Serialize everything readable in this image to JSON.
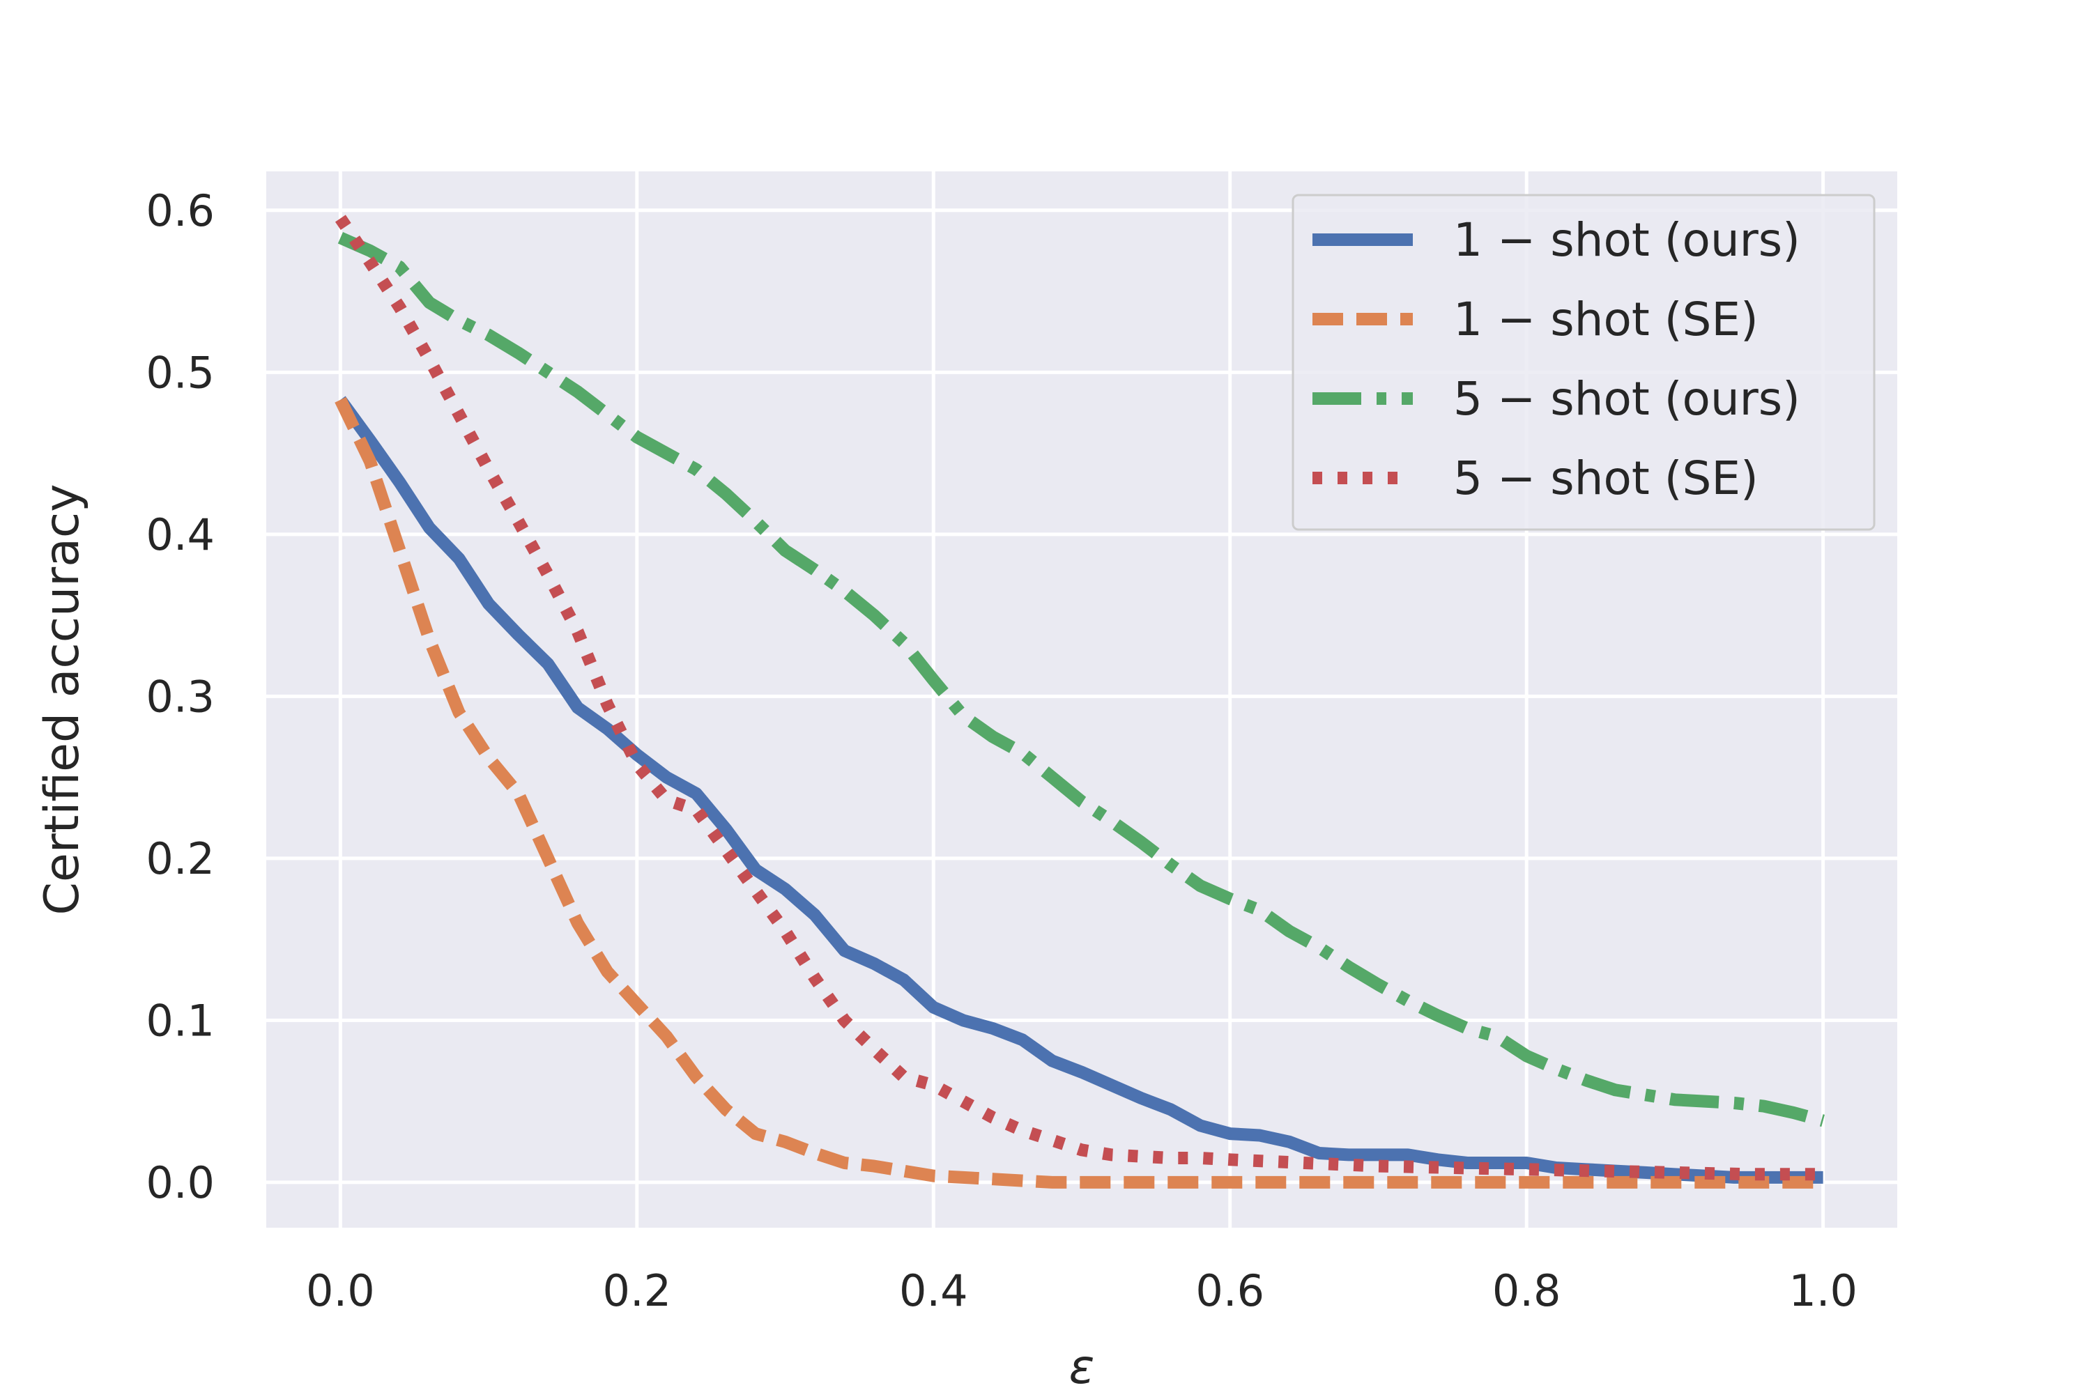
{
  "chart_data": {
    "type": "line",
    "xlabel": "ε",
    "ylabel": "Certified accuracy",
    "xlim": [
      -0.05,
      1.05
    ],
    "ylim": [
      -0.028,
      0.624
    ],
    "xticks": [
      0.0,
      0.2,
      0.4,
      0.6,
      0.8,
      1.0
    ],
    "xtick_labels": [
      "0.0",
      "0.2",
      "0.4",
      "0.6",
      "0.8",
      "1.0"
    ],
    "yticks": [
      0.0,
      0.1,
      0.2,
      0.3,
      0.4,
      0.5,
      0.6
    ],
    "ytick_labels": [
      "0.0",
      "0.1",
      "0.2",
      "0.3",
      "0.4",
      "0.5",
      "0.6"
    ],
    "grid": true,
    "legend_position": "top-right",
    "background_color": "#EAEAF2",
    "series": [
      {
        "name": "1 − shot (ours)",
        "color": "#4C72B0",
        "style": "solid",
        "x": [
          0.0,
          0.02,
          0.04,
          0.06,
          0.08,
          0.1,
          0.12,
          0.14,
          0.16,
          0.18,
          0.2,
          0.22,
          0.24,
          0.26,
          0.28,
          0.3,
          0.32,
          0.34,
          0.36,
          0.38,
          0.4,
          0.42,
          0.44,
          0.46,
          0.48,
          0.5,
          0.52,
          0.54,
          0.56,
          0.58,
          0.6,
          0.62,
          0.64,
          0.66,
          0.68,
          0.7,
          0.72,
          0.74,
          0.76,
          0.78,
          0.8,
          0.82,
          0.84,
          0.86,
          0.88,
          0.9,
          0.92,
          0.94,
          0.96,
          0.98,
          1.0
        ],
        "y": [
          0.483,
          0.458,
          0.432,
          0.404,
          0.385,
          0.357,
          0.338,
          0.32,
          0.293,
          0.28,
          0.264,
          0.25,
          0.24,
          0.218,
          0.193,
          0.181,
          0.165,
          0.143,
          0.135,
          0.125,
          0.108,
          0.1,
          0.095,
          0.088,
          0.075,
          0.068,
          0.06,
          0.052,
          0.045,
          0.035,
          0.03,
          0.029,
          0.025,
          0.018,
          0.017,
          0.017,
          0.017,
          0.014,
          0.012,
          0.012,
          0.012,
          0.009,
          0.008,
          0.007,
          0.006,
          0.005,
          0.004,
          0.003,
          0.003,
          0.003,
          0.003
        ]
      },
      {
        "name": "1 − shot (SE)",
        "color": "#DD8452",
        "style": "dashed",
        "x": [
          0.0,
          0.02,
          0.04,
          0.06,
          0.08,
          0.1,
          0.12,
          0.14,
          0.16,
          0.18,
          0.2,
          0.22,
          0.24,
          0.26,
          0.28,
          0.3,
          0.32,
          0.34,
          0.36,
          0.38,
          0.4,
          0.42,
          0.44,
          0.46,
          0.48,
          0.5,
          0.55,
          0.6,
          0.65,
          0.7,
          0.75,
          0.8,
          0.85,
          0.9,
          0.95,
          1.0
        ],
        "y": [
          0.483,
          0.445,
          0.39,
          0.335,
          0.29,
          0.262,
          0.24,
          0.2,
          0.16,
          0.13,
          0.11,
          0.09,
          0.065,
          0.045,
          0.03,
          0.025,
          0.018,
          0.012,
          0.01,
          0.007,
          0.004,
          0.003,
          0.002,
          0.001,
          0.0,
          0.0,
          0.0,
          0.0,
          0.0,
          0.0,
          0.0,
          0.0,
          0.0,
          0.0,
          0.0,
          0.0
        ]
      },
      {
        "name": "5 − shot (ours)",
        "color": "#55A868",
        "style": "dashdot",
        "x": [
          0.0,
          0.02,
          0.04,
          0.06,
          0.08,
          0.1,
          0.12,
          0.14,
          0.16,
          0.18,
          0.2,
          0.22,
          0.24,
          0.26,
          0.28,
          0.3,
          0.32,
          0.34,
          0.36,
          0.38,
          0.4,
          0.42,
          0.44,
          0.46,
          0.48,
          0.5,
          0.52,
          0.54,
          0.56,
          0.58,
          0.6,
          0.62,
          0.64,
          0.66,
          0.68,
          0.7,
          0.72,
          0.74,
          0.76,
          0.78,
          0.8,
          0.82,
          0.84,
          0.86,
          0.88,
          0.9,
          0.92,
          0.94,
          0.96,
          0.98,
          1.0
        ],
        "y": [
          0.583,
          0.575,
          0.565,
          0.543,
          0.532,
          0.523,
          0.512,
          0.5,
          0.488,
          0.474,
          0.46,
          0.45,
          0.44,
          0.425,
          0.408,
          0.39,
          0.378,
          0.365,
          0.35,
          0.333,
          0.31,
          0.288,
          0.275,
          0.265,
          0.25,
          0.235,
          0.223,
          0.21,
          0.196,
          0.183,
          0.175,
          0.168,
          0.155,
          0.145,
          0.133,
          0.122,
          0.112,
          0.103,
          0.095,
          0.09,
          0.078,
          0.07,
          0.063,
          0.057,
          0.054,
          0.051,
          0.05,
          0.049,
          0.047,
          0.043,
          0.038
        ]
      },
      {
        "name": "5 − shot (SE)",
        "color": "#C44E52",
        "style": "dotted",
        "x": [
          0.0,
          0.02,
          0.04,
          0.06,
          0.08,
          0.1,
          0.12,
          0.14,
          0.16,
          0.18,
          0.2,
          0.22,
          0.24,
          0.26,
          0.28,
          0.3,
          0.32,
          0.34,
          0.36,
          0.38,
          0.4,
          0.42,
          0.44,
          0.46,
          0.48,
          0.5,
          0.52,
          0.54,
          0.56,
          0.58,
          0.6,
          0.65,
          0.7,
          0.75,
          0.8,
          0.85,
          0.9,
          0.95,
          1.0
        ],
        "y": [
          0.595,
          0.568,
          0.54,
          0.508,
          0.474,
          0.44,
          0.408,
          0.375,
          0.34,
          0.295,
          0.258,
          0.236,
          0.23,
          0.205,
          0.18,
          0.155,
          0.126,
          0.1,
          0.082,
          0.065,
          0.06,
          0.05,
          0.04,
          0.032,
          0.026,
          0.02,
          0.017,
          0.016,
          0.015,
          0.015,
          0.014,
          0.012,
          0.01,
          0.009,
          0.008,
          0.007,
          0.006,
          0.005,
          0.005
        ]
      }
    ]
  }
}
